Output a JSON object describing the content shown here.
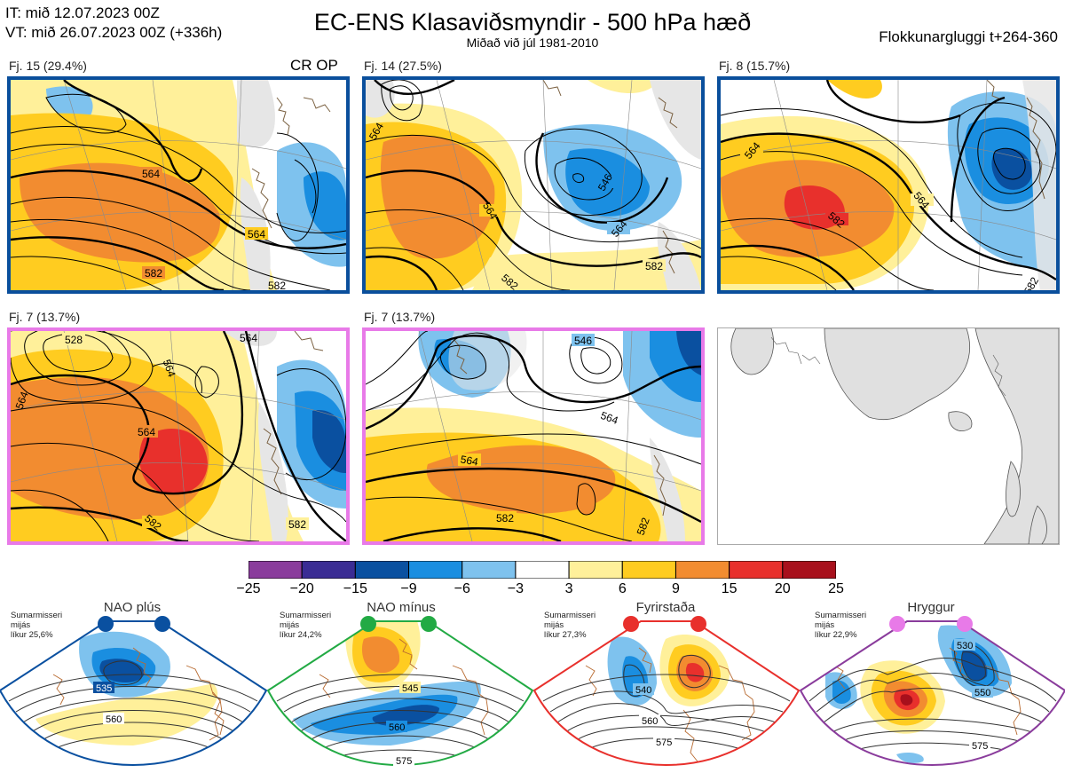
{
  "header": {
    "it_line": "IT: mið 12.07.2023 00Z",
    "vt_line": "VT: mið 26.07.2023 00Z  (+336h)",
    "title": "EC-ENS Klasaviðsmyndir - 500 hPa hæð",
    "subtitle": "Miðað við júl 1981-2010",
    "window": "Flokkunargluggi t+264-360"
  },
  "panels": [
    {
      "label": "Fj. 15 (29.4%)",
      "extra": "CR OP",
      "border": "#0a4f9c",
      "contours": [
        "564",
        "564",
        "582",
        "582"
      ]
    },
    {
      "label": "Fj. 14 (27.5%)",
      "extra": "",
      "border": "#0a4f9c",
      "contours": [
        "564",
        "564",
        "546",
        "564",
        "582",
        "582"
      ]
    },
    {
      "label": "Fj. 8 (15.7%)",
      "extra": "",
      "border": "#0a4f9c",
      "contours": [
        "564",
        "564",
        "582",
        "582"
      ]
    },
    {
      "label": "Fj. 7 (13.7%)",
      "extra": "",
      "border": "#e87ae8",
      "contours": [
        "528",
        "564",
        "564",
        "564",
        "564",
        "582",
        "582"
      ]
    },
    {
      "label": "Fj. 7 (13.7%)",
      "extra": "",
      "border": "#e87ae8",
      "contours": [
        "546",
        "564",
        "564",
        "582",
        "582"
      ]
    }
  ],
  "colorbar": {
    "colors": [
      "#8a3c9c",
      "#3a2c94",
      "#0a50a0",
      "#1a8ee0",
      "#7ec2ee",
      "#ffffff",
      "#fff09a",
      "#ffcc20",
      "#f28c30",
      "#e8302c",
      "#a8101c"
    ],
    "labels": [
      "−25",
      "−20",
      "−15",
      "−9",
      "−6",
      "−3",
      "3",
      "6",
      "9",
      "15",
      "20",
      "25"
    ]
  },
  "regimes": [
    {
      "name": "NAO plús",
      "info": [
        "Sumarmisseri",
        "mijás",
        "líkur 25,6%"
      ],
      "color": "#0a50a0",
      "contours": [
        "535",
        "560"
      ]
    },
    {
      "name": "NAO mínus",
      "info": [
        "Sumarmisseri",
        "mijás",
        "líkur 24,2%"
      ],
      "color": "#22aa44",
      "contours": [
        "545",
        "560",
        "575"
      ]
    },
    {
      "name": "Fyrirstaða",
      "info": [
        "Sumarmisseri",
        "mijás",
        "líkur 27,3%"
      ],
      "color": "#e8302c",
      "contours": [
        "540",
        "560",
        "575"
      ]
    },
    {
      "name": "Hryggur",
      "info": [
        "Sumarmisseri",
        "mijás",
        "líkur 22,9%"
      ],
      "color": "#e87ae8",
      "contours": [
        "530",
        "550",
        "575"
      ]
    }
  ]
}
